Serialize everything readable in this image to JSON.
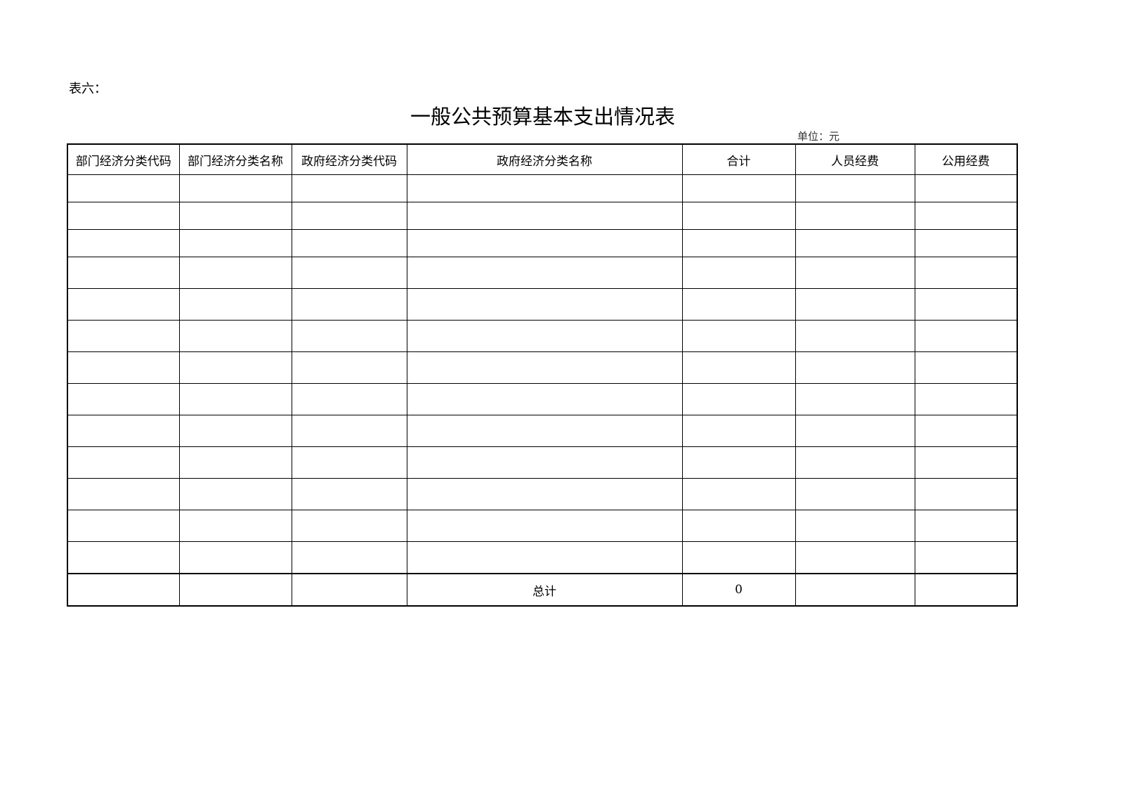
{
  "doc": {
    "table_label": "表六：",
    "title": "一般公共预算基本支出情况表",
    "unit": "单位：元"
  },
  "table": {
    "headers": [
      "部门经济分类代码",
      "部门经济分类名称",
      "政府经济分类代码",
      "政府经济分类名称",
      "合计",
      "人员经费",
      "公用经费"
    ],
    "empty_row_count": 13,
    "total_row": [
      "",
      "",
      "",
      "总计",
      "0",
      "",
      ""
    ]
  }
}
